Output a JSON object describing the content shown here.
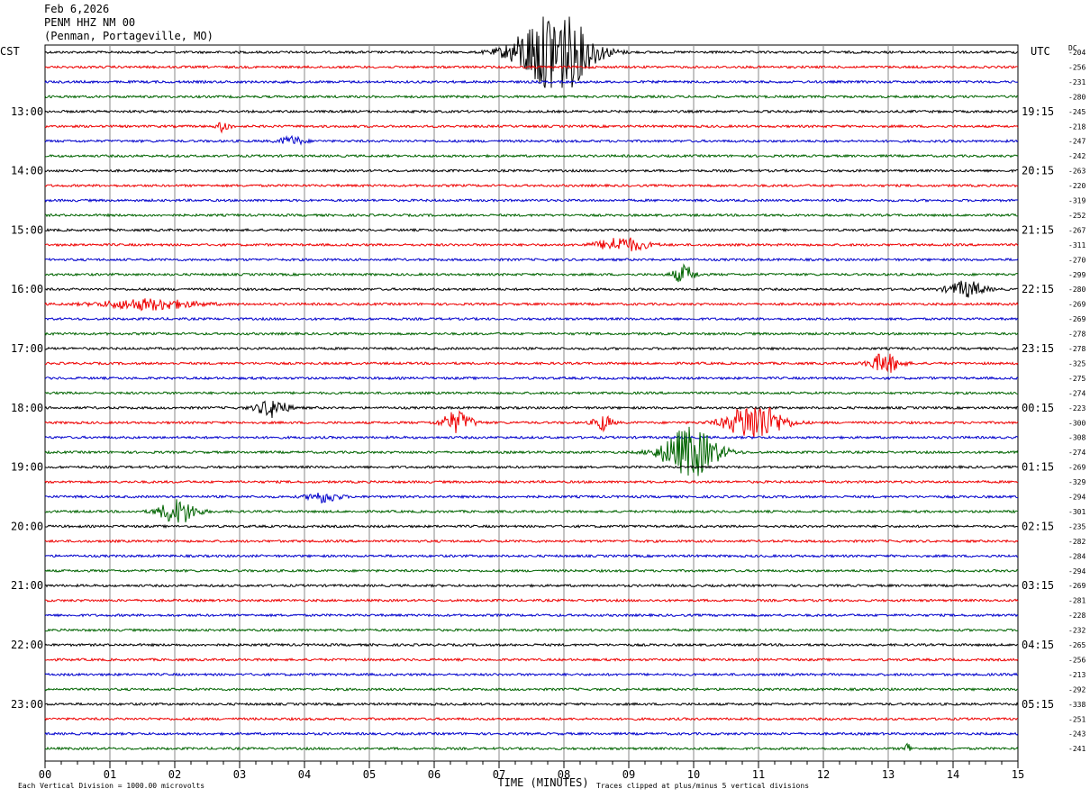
{
  "header": {
    "date": "Feb 6,2026",
    "station": "PENM HHZ NM 00",
    "location": "(Penman, Portageville, MO)"
  },
  "left_tz_label": "CST",
  "right_tz_label": "UTC",
  "dc_label": "DC",
  "colors": {
    "cycle": [
      "#000000",
      "#ee0000",
      "#0000cc",
      "#006400"
    ],
    "grid": "#888888"
  },
  "chart_data": {
    "type": "line",
    "title": "PENM HHZ NM 00",
    "xlabel": "TIME (MINUTES)",
    "xlim": [
      0,
      15
    ],
    "x_ticks": [
      "00",
      "01",
      "02",
      "03",
      "04",
      "05",
      "06",
      "07",
      "08",
      "09",
      "10",
      "11",
      "12",
      "13",
      "14",
      "15"
    ],
    "trace_count": 48,
    "left_hour_labels": [
      "13:00",
      "14:00",
      "15:00",
      "16:00",
      "17:00",
      "18:00",
      "19:00",
      "20:00",
      "21:00",
      "22:00",
      "23:00"
    ],
    "right_hour_labels": [
      "19:15",
      "20:15",
      "21:15",
      "22:15",
      "23:15",
      "00:15",
      "01:15",
      "02:15",
      "03:15",
      "04:15",
      "05:15"
    ],
    "dc_offsets": [
      -204,
      -256,
      -231,
      -280,
      -245,
      -218,
      -247,
      -242,
      -263,
      -220,
      -319,
      -252,
      -267,
      -311,
      -270,
      -299,
      -280,
      -269,
      -269,
      -278,
      -278,
      -325,
      -275,
      -274,
      -223,
      -300,
      -308,
      -274,
      -269,
      -329,
      -294,
      -301,
      -235,
      -282,
      -284,
      -294,
      -269,
      -281,
      -228,
      -232,
      -265,
      -256,
      -213,
      -292,
      -338,
      -251,
      -243,
      -241
    ],
    "events": [
      {
        "trace": 0,
        "minute": 7.85,
        "amplitude": 5.0,
        "duration": 1.2
      },
      {
        "trace": 5,
        "minute": 2.75,
        "amplitude": 0.6,
        "duration": 0.2
      },
      {
        "trace": 6,
        "minute": 3.8,
        "amplitude": 0.5,
        "duration": 0.4
      },
      {
        "trace": 13,
        "minute": 8.9,
        "amplitude": 0.8,
        "duration": 0.8
      },
      {
        "trace": 15,
        "minute": 9.85,
        "amplitude": 1.0,
        "duration": 0.35
      },
      {
        "trace": 16,
        "minute": 14.2,
        "amplitude": 0.9,
        "duration": 0.6
      },
      {
        "trace": 17,
        "minute": 1.6,
        "amplitude": 0.6,
        "duration": 1.5
      },
      {
        "trace": 21,
        "minute": 12.95,
        "amplitude": 1.1,
        "duration": 0.5
      },
      {
        "trace": 24,
        "minute": 3.5,
        "amplitude": 1.0,
        "duration": 0.5
      },
      {
        "trace": 25,
        "minute": 6.35,
        "amplitude": 1.2,
        "duration": 0.5
      },
      {
        "trace": 25,
        "minute": 8.6,
        "amplitude": 0.9,
        "duration": 0.3
      },
      {
        "trace": 25,
        "minute": 10.95,
        "amplitude": 2.2,
        "duration": 0.9
      },
      {
        "trace": 27,
        "minute": 9.95,
        "amplitude": 2.8,
        "duration": 0.9
      },
      {
        "trace": 30,
        "minute": 4.3,
        "amplitude": 0.6,
        "duration": 0.5
      },
      {
        "trace": 31,
        "minute": 2.05,
        "amplitude": 1.4,
        "duration": 0.6
      },
      {
        "trace": 47,
        "minute": 13.3,
        "amplitude": 0.7,
        "duration": 0.1
      }
    ]
  },
  "footer": {
    "scale_note": "Each Vertical Division = 1000.00 microvolts",
    "clip_note": "Traces clipped at plus/minus 5 vertical divisions"
  }
}
